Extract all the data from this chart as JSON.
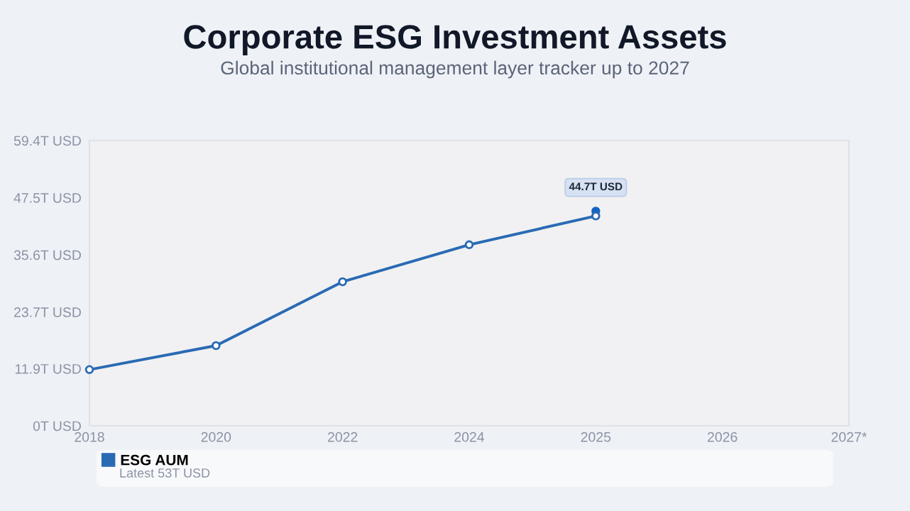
{
  "chart_data": {
    "type": "line",
    "title": "Corporate ESG Investment Assets",
    "subtitle": "Global institutional management layer tracker up to 2027",
    "categories": [
      "2018",
      "2020",
      "2022",
      "2024",
      "2025",
      "2026",
      "2027*"
    ],
    "series": [
      {
        "name": "ESG AUM",
        "color": "#2a6ab3",
        "values": [
          11.7,
          16.7,
          30.0,
          37.7,
          43.7,
          null,
          null
        ]
      },
      {
        "type": "scatter",
        "color": "#1565c0",
        "values": [
          null,
          null,
          null,
          null,
          44.7,
          null,
          null
        ],
        "value_labels": [
          null,
          null,
          null,
          null,
          "44.7T USD",
          null,
          null
        ]
      }
    ],
    "ylim": [
      0,
      59.4
    ],
    "yticks": [
      {
        "value": 0,
        "label": "0T USD"
      },
      {
        "value": 11.9,
        "label": "11.9T USD"
      },
      {
        "value": 23.7,
        "label": "23.7T USD"
      },
      {
        "value": 35.6,
        "label": "35.6T USD"
      },
      {
        "value": 47.5,
        "label": "47.5T USD"
      },
      {
        "value": 59.4,
        "label": "59.4T USD"
      }
    ],
    "annotations": [
      "Latest 53T USD"
    ],
    "legend": "bottom",
    "marker": "circle",
    "line_style": "solid",
    "grid": false
  }
}
